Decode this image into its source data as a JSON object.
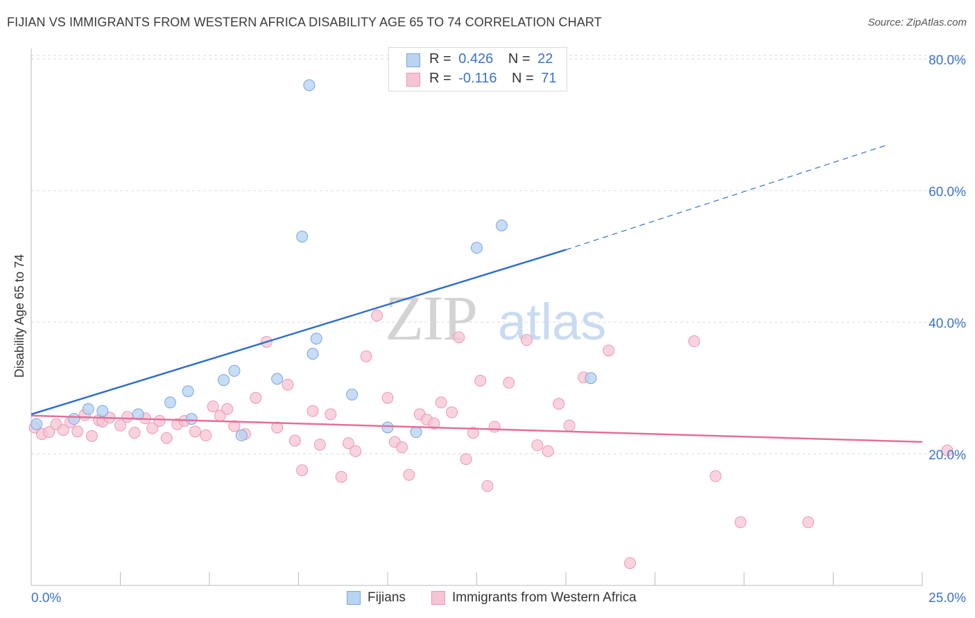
{
  "header": {
    "title": "FIJIAN VS IMMIGRANTS FROM WESTERN AFRICA DISABILITY AGE 65 TO 74 CORRELATION CHART",
    "source": "Source: ZipAtlas.com"
  },
  "watermark": {
    "zip": "ZIP",
    "atlas": "atlas"
  },
  "legend": {
    "r_label": "R =",
    "n_label": "N =",
    "rows": [
      {
        "r": "0.426",
        "n": "22",
        "color": "#5b8fd8"
      },
      {
        "r": "-0.116",
        "n": "71",
        "color": "#e87fa2"
      }
    ]
  },
  "bottom_legend": {
    "items": [
      {
        "label": "Fijians"
      },
      {
        "label": "Immigrants from Western Africa"
      }
    ]
  },
  "colors": {
    "blue_fill": "#b9d3f3",
    "blue_edge": "#7aa6e0",
    "blue_line": "#2f6fcb",
    "pink_fill": "#f6c4d3",
    "pink_edge": "#ec97b2",
    "pink_line": "#e56e98",
    "tick_text": "#3a72c9",
    "grid": "#d9d9d9"
  },
  "chart_data": {
    "type": "scatter",
    "title": "FIJIAN VS IMMIGRANTS FROM WESTERN AFRICA DISABILITY AGE 65 TO 74 CORRELATION CHART",
    "xlabel": "",
    "ylabel": "Disability Age 65 to 74",
    "xlim": [
      0,
      25
    ],
    "ylim": [
      0,
      80
    ],
    "x_tick_labels": [
      "0.0%",
      "25.0%"
    ],
    "y_ticks": [
      20,
      40,
      60,
      80
    ],
    "y_tick_labels": [
      "20.0%",
      "40.0%",
      "60.0%",
      "80.0%"
    ],
    "grid": true,
    "legend_position": "top-center",
    "series": [
      {
        "name": "Fijians",
        "r": 0.426,
        "n": 22,
        "trend": {
          "x0": 0,
          "y0": 26.0,
          "x1": 15.0,
          "y1": 51.0,
          "x_dash_end": 24.0,
          "y_dash_end": 66.9
        },
        "points": [
          [
            0.15,
            24.5
          ],
          [
            1.2,
            25.3
          ],
          [
            1.6,
            26.8
          ],
          [
            2.0,
            26.5
          ],
          [
            3.0,
            26.0
          ],
          [
            3.9,
            27.8
          ],
          [
            4.4,
            29.5
          ],
          [
            4.5,
            25.3
          ],
          [
            5.4,
            31.2
          ],
          [
            5.7,
            32.6
          ],
          [
            5.9,
            22.8
          ],
          [
            6.9,
            31.4
          ],
          [
            7.9,
            35.2
          ],
          [
            8.0,
            37.5
          ],
          [
            7.6,
            53.0
          ],
          [
            7.8,
            76.0
          ],
          [
            9.0,
            29.0
          ],
          [
            10.0,
            24.0
          ],
          [
            10.8,
            23.3
          ],
          [
            12.5,
            51.3
          ],
          [
            13.2,
            54.7
          ],
          [
            15.7,
            31.5
          ]
        ]
      },
      {
        "name": "Immigrants from Western Africa",
        "r": -0.116,
        "n": 71,
        "trend": {
          "x0": 0,
          "y0": 25.8,
          "x1": 25.0,
          "y1": 21.8
        },
        "points": [
          [
            0.1,
            24.0
          ],
          [
            0.3,
            23.0
          ],
          [
            0.5,
            23.3
          ],
          [
            0.7,
            24.5
          ],
          [
            0.9,
            23.6
          ],
          [
            1.1,
            24.8
          ],
          [
            1.3,
            23.4
          ],
          [
            1.5,
            25.9
          ],
          [
            1.7,
            22.7
          ],
          [
            1.9,
            25.1
          ],
          [
            2.0,
            24.9
          ],
          [
            2.2,
            25.5
          ],
          [
            2.5,
            24.3
          ],
          [
            2.7,
            25.6
          ],
          [
            2.9,
            23.2
          ],
          [
            3.2,
            25.4
          ],
          [
            3.4,
            23.9
          ],
          [
            3.6,
            25.0
          ],
          [
            3.8,
            22.4
          ],
          [
            4.1,
            24.5
          ],
          [
            4.3,
            25.0
          ],
          [
            4.6,
            23.4
          ],
          [
            4.9,
            22.8
          ],
          [
            5.1,
            27.2
          ],
          [
            5.3,
            25.8
          ],
          [
            5.5,
            26.8
          ],
          [
            5.7,
            24.2
          ],
          [
            6.0,
            23.0
          ],
          [
            6.3,
            28.5
          ],
          [
            6.6,
            37.0
          ],
          [
            6.9,
            24.0
          ],
          [
            7.2,
            30.5
          ],
          [
            7.4,
            22.0
          ],
          [
            7.6,
            17.5
          ],
          [
            7.9,
            26.5
          ],
          [
            8.1,
            21.4
          ],
          [
            8.4,
            26.0
          ],
          [
            8.7,
            16.5
          ],
          [
            8.9,
            21.6
          ],
          [
            9.1,
            20.4
          ],
          [
            9.4,
            34.8
          ],
          [
            9.7,
            41.0
          ],
          [
            10.0,
            28.5
          ],
          [
            10.2,
            21.8
          ],
          [
            10.4,
            21.0
          ],
          [
            10.6,
            16.8
          ],
          [
            10.9,
            26.0
          ],
          [
            11.1,
            25.2
          ],
          [
            11.3,
            24.6
          ],
          [
            11.5,
            27.8
          ],
          [
            11.8,
            26.3
          ],
          [
            12.0,
            37.7
          ],
          [
            12.2,
            19.2
          ],
          [
            12.4,
            23.2
          ],
          [
            12.6,
            31.1
          ],
          [
            12.8,
            15.1
          ],
          [
            13.0,
            24.1
          ],
          [
            13.4,
            30.8
          ],
          [
            13.9,
            37.3
          ],
          [
            14.2,
            21.3
          ],
          [
            14.5,
            20.4
          ],
          [
            14.8,
            27.6
          ],
          [
            15.1,
            24.3
          ],
          [
            15.5,
            31.6
          ],
          [
            16.2,
            35.7
          ],
          [
            16.8,
            3.4
          ],
          [
            18.6,
            37.1
          ],
          [
            19.2,
            16.6
          ],
          [
            19.9,
            9.6
          ],
          [
            21.8,
            9.6
          ],
          [
            25.7,
            20.5
          ]
        ]
      }
    ]
  }
}
